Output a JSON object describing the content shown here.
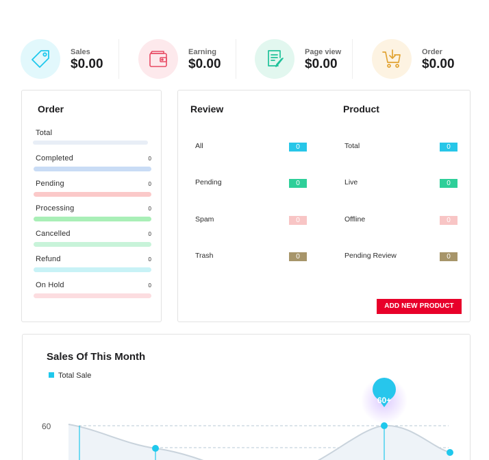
{
  "stats": [
    {
      "label": "Sales",
      "value": "$0.00",
      "icon": "tag-icon",
      "bg": "#e2f8fc",
      "color": "#1fc8ec"
    },
    {
      "label": "Earning",
      "value": "$0.00",
      "icon": "wallet-icon",
      "bg": "#fde9ec",
      "color": "#e84a64"
    },
    {
      "label": "Page view",
      "value": "$0.00",
      "icon": "document-edit-icon",
      "bg": "#e2f7ef",
      "color": "#1fc29a"
    },
    {
      "label": "Order",
      "value": "$0.00",
      "icon": "cart-download-icon",
      "bg": "#fdf3e2",
      "color": "#e1a332"
    }
  ],
  "order": {
    "title": "Order",
    "rows": [
      {
        "name": "Total",
        "count": "",
        "color": "#e8eef6"
      },
      {
        "name": "Completed",
        "count": "0",
        "color": "#c9dcf5"
      },
      {
        "name": "Pending",
        "count": "0",
        "color": "#fbc9c9"
      },
      {
        "name": "Processing",
        "count": "0",
        "color": "#a9efb7"
      },
      {
        "name": "Cancelled",
        "count": "0",
        "color": "#c8f3d9"
      },
      {
        "name": "Refund",
        "count": "0",
        "color": "#c8f2f6"
      },
      {
        "name": "On Hold",
        "count": "0",
        "color": "#fcdde0"
      }
    ]
  },
  "review": {
    "title": "Review",
    "rows": [
      {
        "name": "All",
        "count": "0",
        "color": "#27c6e8"
      },
      {
        "name": "Pending",
        "count": "0",
        "color": "#2ecf99"
      },
      {
        "name": "Spam",
        "count": "0",
        "color": "#f8c5c5"
      },
      {
        "name": "Trash",
        "count": "0",
        "color": "#a7956a"
      }
    ]
  },
  "product": {
    "title": "Product",
    "rows": [
      {
        "name": "Total",
        "count": "0",
        "color": "#27c6e8"
      },
      {
        "name": "Live",
        "count": "0",
        "color": "#2ecf99"
      },
      {
        "name": "Offline",
        "count": "0",
        "color": "#f8c5c5"
      },
      {
        "name": "Pending Review",
        "count": "0",
        "color": "#a7956a"
      }
    ],
    "add_button": "ADD NEW PRODUCT"
  },
  "sales_chart": {
    "title": "Sales Of This Month",
    "legend": "Total Sale",
    "y_tick": "60",
    "tooltip": "60+",
    "series_color": "#1fc8ec"
  },
  "chart_data": {
    "type": "area",
    "title": "Sales Of This Month",
    "series": [
      {
        "name": "Total Sale",
        "values": [
          60,
          52,
          60,
          50
        ]
      }
    ],
    "y_ticks": [
      "60"
    ],
    "annotations": [
      "60+"
    ],
    "legend_position": "top-left"
  }
}
